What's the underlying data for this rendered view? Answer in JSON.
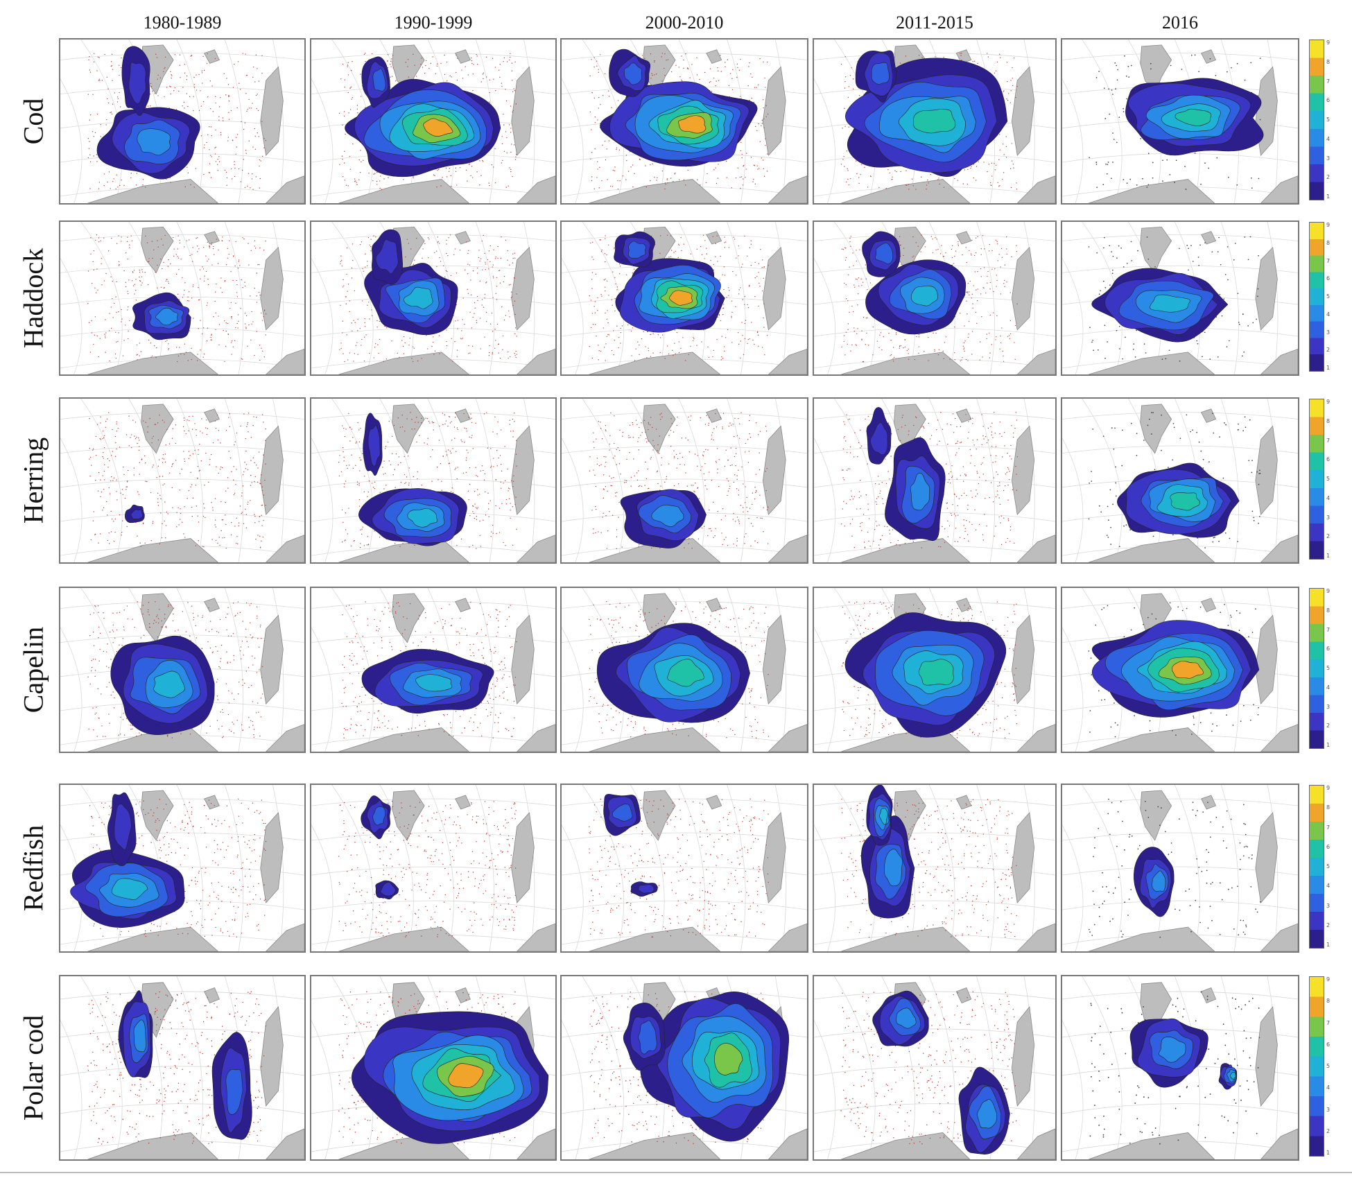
{
  "figure": {
    "columns": [
      "1980-1989",
      "1990-1999",
      "2000-2010",
      "2011-2015",
      "2016"
    ],
    "rows": [
      "Cod",
      "Haddock",
      "Herring",
      "Capelin",
      "Redfish",
      "Polar cod"
    ],
    "colorbar_ticks": [
      "9",
      "8",
      "7",
      "6",
      "5",
      "4",
      "3",
      "2",
      "1"
    ],
    "palette": [
      "#2c1f8c",
      "#3b35c4",
      "#2f60e0",
      "#2a8be6",
      "#1fb2d6",
      "#1fc2a6",
      "#79c64a",
      "#f0a52a",
      "#f6e028"
    ],
    "dot_colors": {
      "early": "#c0392b",
      "late": "#444444"
    },
    "land_color": "#bdbdbd"
  }
}
